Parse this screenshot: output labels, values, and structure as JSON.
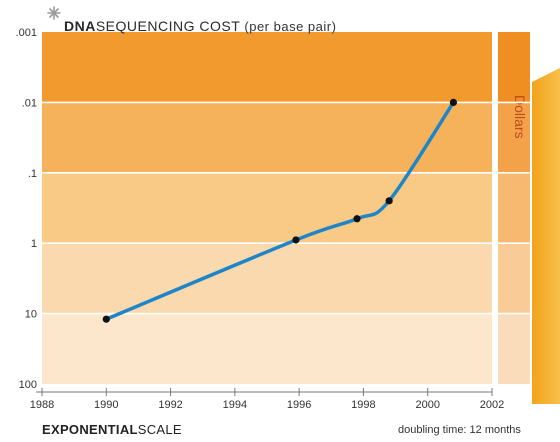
{
  "header": {
    "title_bold": "DNA",
    "title_rest": "SEQUENCING COST",
    "title_note": "(per base pair)"
  },
  "footer": {
    "scale_bold": "EXPONENTIAL",
    "scale_rest": "SCALE",
    "doubling": "doubling time: 12 months"
  },
  "side_label": "Dollars",
  "colors": {
    "band_top": "#f29a2e",
    "band_bottom": "#fce6cc",
    "curve": "#1e86c8",
    "points": "#111111",
    "legend_arrow": "#f2a31c"
  },
  "chart_data": {
    "type": "line",
    "title": "DNA SEQUENCING COST (per base pair)",
    "xlabel": "",
    "ylabel": "Dollars",
    "y_scale": "log",
    "y_reversed": true,
    "xlim": [
      1988,
      2002
    ],
    "ylim": [
      0.001,
      100
    ],
    "x_ticks": [
      "1988",
      "1990",
      "1992",
      "1994",
      "1996",
      "1998",
      "2000",
      "2002"
    ],
    "y_ticks": [
      ".001",
      ".01",
      ".1",
      "1",
      "10",
      "100"
    ],
    "grid": true,
    "series": [
      {
        "x": [
          1990,
          1995.9,
          1997.8,
          1998.8,
          2000.8
        ],
        "y": [
          12,
          0.9,
          0.45,
          0.25,
          0.01
        ]
      }
    ]
  }
}
